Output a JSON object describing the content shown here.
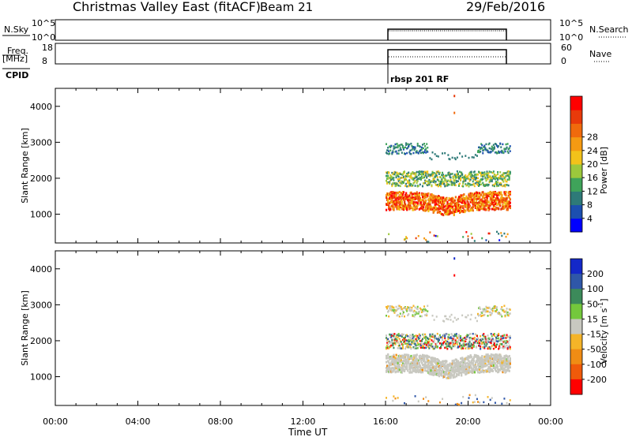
{
  "header": {
    "site": "Christmas Valley East (fitACF)",
    "beam": "Beam 21",
    "date": "29/Feb/2016"
  },
  "meta_panels": {
    "nsky_label": "N.Sky",
    "nsky_ticks": [
      "10^5",
      "10^0"
    ],
    "nsearch_label": "N.Search",
    "nsearch_ticks": [
      "10^5",
      "10^0"
    ],
    "freq_label_1": "Freq.",
    "freq_label_2": "[MHz]",
    "freq_ticks": [
      "18",
      "8"
    ],
    "nave_label": "Nave",
    "nave_ticks": [
      "60",
      "0"
    ],
    "cpid_label": "CPID",
    "cpid_value": "rbsp 201 RF"
  },
  "chart_data": [
    {
      "type": "heatmap",
      "name": "power",
      "ylabel": "Slant Range [km]",
      "ylim": [
        200,
        4500
      ],
      "yticks": [
        1000,
        2000,
        3000,
        4000
      ],
      "xlim": [
        0,
        24
      ],
      "data_window_hours": [
        16,
        22
      ],
      "colorbar": {
        "label": "Power [dB]",
        "ticks": [
          "4",
          "8",
          "12",
          "16",
          "20",
          "24",
          "28"
        ],
        "colors": [
          "#0000ff",
          "#1c4fb0",
          "#2e7a78",
          "#3fa35a",
          "#9cc83c",
          "#f2c21a",
          "#f59a12",
          "#f06a0c",
          "#e83a0a",
          "#ff0000"
        ]
      },
      "bands": [
        {
          "range_km": [
            2700,
            3050
          ],
          "level": 8,
          "note": "upper echo band 16-18 UT, 20.5-22 UT"
        },
        {
          "range_km": [
            1800,
            2250
          ],
          "level": 14
        },
        {
          "range_km": [
            1250,
            1650
          ],
          "level": 26
        }
      ]
    },
    {
      "type": "heatmap",
      "name": "velocity",
      "ylabel": "Slant Range [km]",
      "ylim": [
        200,
        4500
      ],
      "yticks": [
        1000,
        2000,
        3000,
        4000
      ],
      "xlim": [
        0,
        24
      ],
      "data_window_hours": [
        16,
        22
      ],
      "colorbar": {
        "label": "Velocity [m s",
        "label_sup": "-1",
        "label_end": "]",
        "ticks": [
          "200",
          "100",
          "50",
          "15",
          "-15",
          "-50",
          "-100",
          "-200"
        ],
        "colors": [
          "#1428c8",
          "#2f57a8",
          "#3c8a5a",
          "#74c83c",
          "#c8c8c0",
          "#f5b428",
          "#f08c14",
          "#f05a0a",
          "#ff0000"
        ]
      },
      "bands": [
        {
          "range_km": [
            2700,
            3050
          ],
          "level": 0
        },
        {
          "range_km": [
            1800,
            2250
          ],
          "level": 10
        },
        {
          "range_km": [
            1150,
            1750
          ],
          "level": 0
        }
      ]
    }
  ],
  "xaxis": {
    "label": "Time UT",
    "ticks": [
      "00:00",
      "04:00",
      "08:00",
      "12:00",
      "16:00",
      "20:00",
      "00:00"
    ]
  }
}
